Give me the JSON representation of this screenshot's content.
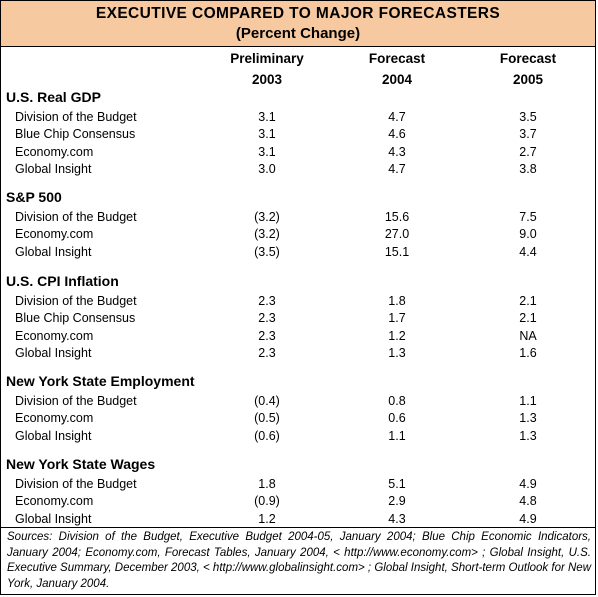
{
  "title": "EXECUTIVE COMPARED TO MAJOR FORECASTERS",
  "subtitle": "(Percent Change)",
  "columns": [
    {
      "line1": "Preliminary",
      "line2": "2003"
    },
    {
      "line1": "Forecast",
      "line2": "2004"
    },
    {
      "line1": "Forecast",
      "line2": "2005"
    }
  ],
  "sections": [
    {
      "title": "U.S. Real GDP",
      "rows": [
        {
          "label": "Division of the Budget",
          "values": [
            "3.1",
            "4.7",
            "3.5"
          ]
        },
        {
          "label": "Blue Chip Consensus",
          "values": [
            "3.1",
            "4.6",
            "3.7"
          ]
        },
        {
          "label": "Economy.com",
          "values": [
            "3.1",
            "4.3",
            "2.7"
          ]
        },
        {
          "label": "Global Insight",
          "values": [
            "3.0",
            "4.7",
            "3.8"
          ]
        }
      ]
    },
    {
      "title": "S&P 500",
      "rows": [
        {
          "label": "Division of the Budget",
          "values": [
            "(3.2)",
            "15.6",
            "7.5"
          ]
        },
        {
          "label": "Economy.com",
          "values": [
            "(3.2)",
            "27.0",
            "9.0"
          ]
        },
        {
          "label": "Global Insight",
          "values": [
            "(3.5)",
            "15.1",
            "4.4"
          ]
        }
      ]
    },
    {
      "title": "U.S. CPI Inflation",
      "rows": [
        {
          "label": "Division of the Budget",
          "values": [
            "2.3",
            "1.8",
            "2.1"
          ]
        },
        {
          "label": "Blue Chip Consensus",
          "values": [
            "2.3",
            "1.7",
            "2.1"
          ]
        },
        {
          "label": "Economy.com",
          "values": [
            "2.3",
            "1.2",
            "NA"
          ]
        },
        {
          "label": "Global Insight",
          "values": [
            "2.3",
            "1.3",
            "1.6"
          ]
        }
      ]
    },
    {
      "title": "New York State Employment",
      "rows": [
        {
          "label": "Division of the Budget",
          "values": [
            "(0.4)",
            "0.8",
            "1.1"
          ]
        },
        {
          "label": "Economy.com",
          "values": [
            "(0.5)",
            "0.6",
            "1.3"
          ]
        },
        {
          "label": "Global Insight",
          "values": [
            "(0.6)",
            "1.1",
            "1.3"
          ]
        }
      ]
    },
    {
      "title": "New York State Wages",
      "rows": [
        {
          "label": "Division of the Budget",
          "values": [
            "1.8",
            "5.1",
            "4.9"
          ]
        },
        {
          "label": "Economy.com",
          "values": [
            "(0.9)",
            "2.9",
            "4.8"
          ]
        },
        {
          "label": "Global Insight",
          "values": [
            "1.2",
            "4.3",
            "4.9"
          ]
        }
      ]
    }
  ],
  "sources": "Sources: Division of the Budget, Executive Budget 2004-05, January 2004; Blue Chip Economic Indicators, January 2004; Economy.com, Forecast Tables, January 2004, < http://www.economy.com> ; Global Insight, U.S. Executive Summary, December 2003, < http://www.globalinsight.com> ; Global Insight, Short-term Outlook for New York, January 2004."
}
